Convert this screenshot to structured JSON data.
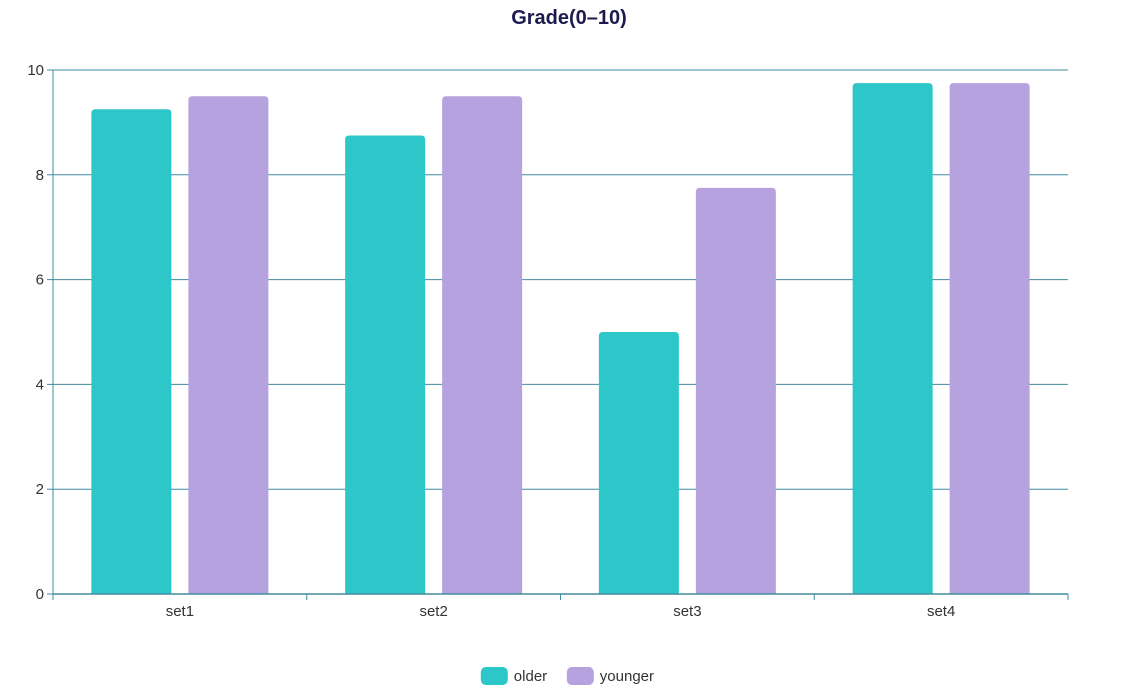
{
  "chart_data": {
    "type": "bar",
    "title": "Grade(0–10)",
    "xlabel": "",
    "ylabel": "",
    "categories": [
      "set1",
      "set2",
      "set3",
      "set4"
    ],
    "series": [
      {
        "name": "older",
        "values": [
          9.25,
          8.75,
          5.0,
          9.75
        ],
        "color": "#2ec7c9"
      },
      {
        "name": "younger",
        "values": [
          9.5,
          9.5,
          7.75,
          9.75
        ],
        "color": "#b6a2de"
      }
    ],
    "ylim": [
      0,
      10
    ],
    "yticks": [
      0,
      2,
      4,
      6,
      8,
      10
    ],
    "grid": true,
    "legend_position": "bottom-center",
    "colors": {
      "title": "#1e1a4f",
      "axis": "#408ca0",
      "grid": "#408ca0",
      "tick_label": "#333333"
    }
  }
}
